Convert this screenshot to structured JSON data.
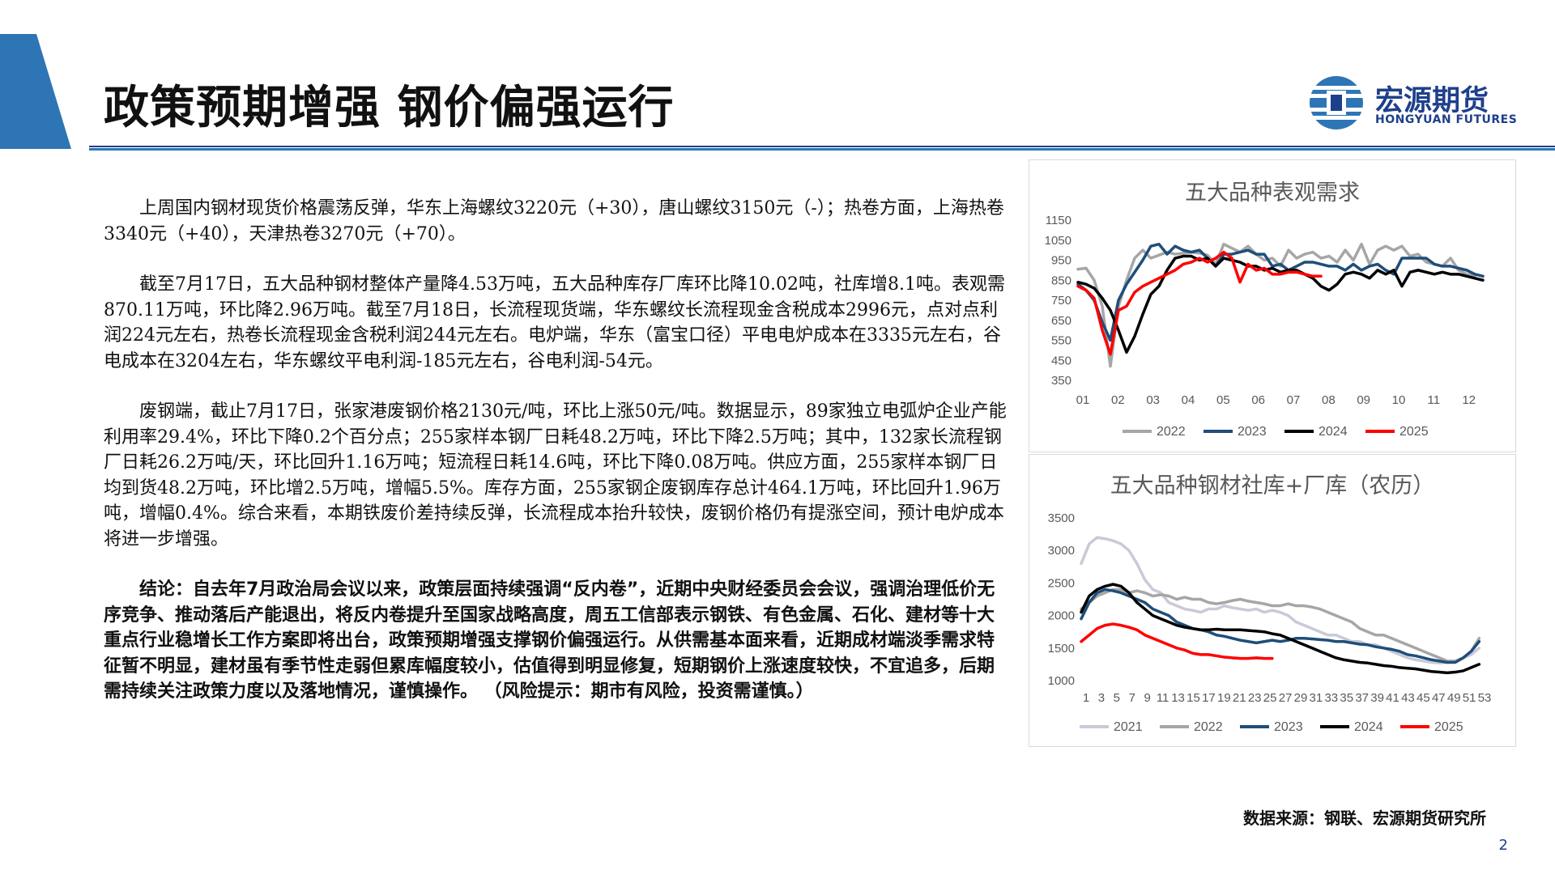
{
  "header": {
    "title": "政策预期增强 钢价偏强运行",
    "logo_cn": "宏源期货",
    "logo_en": "HONGYUAN FUTURES",
    "accent_color": "#2e75b6"
  },
  "body": {
    "p1": "上周国内钢材现货价格震荡反弹，华东上海螺纹3220元（+30），唐山螺纹3150元（-）；热卷方面，上海热卷3340元（+40），天津热卷3270元（+70）。",
    "p2": "截至7月17日，五大品种钢材整体产量降4.53万吨，五大品种库存厂库环比降10.02吨，社库增8.1吨。表观需870.11万吨，环比降2.96万吨。截至7月18日，长流程现货端，华东螺纹长流程现金含税成本2996元，点对点利润224元左右，热卷长流程现金含税利润244元左右。电炉端，华东（富宝口径）平电电炉成本在3335元左右，谷电成本在3204左右，华东螺纹平电利润-185元左右，谷电利润-54元。",
    "p3": "废钢端，截止7月17日，张家港废钢价格2130元/吨，环比上涨50元/吨。数据显示，89家独立电弧炉企业产能利用率29.4%，环比下降0.2个百分点；255家样本钢厂日耗48.2万吨，环比下降2.5万吨；其中，132家长流程钢厂日耗26.2万吨/天，环比回升1.16万吨；短流程日耗14.6吨，环比下降0.08万吨。供应方面，255家样本钢厂日均到货48.2万吨，环比增2.5万吨，增幅5.5%。库存方面，255家钢企废钢库存总计464.1万吨，环比回升1.96万吨，增幅0.4%。综合来看，本期铁废价差持续反弹，长流程成本抬升较快，废钢价格仍有提涨空间，预计电炉成本将进一步增强。",
    "p4": "结论：自去年7月政治局会议以来，政策层面持续强调“反内卷”，近期中央财经委员会会议，强调治理低价无序竞争、推动落后产能退出，将反内卷提升至国家战略高度，周五工信部表示钢铁、有色金属、石化、建材等十大重点行业稳增长工作方案即将出台，政策预期增强支撑钢价偏强运行。从供需基本面来看，近期成材端淡季需求特征暂不明显，建材虽有季节性走弱但累库幅度较小，估值得到明显修复，短期钢价上涨速度较快，不宜追多，后期需持续关注政策力度以及落地情况，谨慎操作。 （风险提示：期市有风险，投资需谨慎。）"
  },
  "footer": {
    "source": "数据来源：钢联、宏源期货研究所",
    "page": "2"
  },
  "chart_data": [
    {
      "type": "line",
      "title": "五大品种表观需求",
      "ylim": [
        350,
        1150
      ],
      "yticks": [
        1150,
        1050,
        950,
        850,
        750,
        650,
        550,
        450,
        350
      ],
      "x_tick_labels": [
        "01",
        "02",
        "03",
        "04",
        "05",
        "06",
        "07",
        "08",
        "09",
        "10",
        "11",
        "12"
      ],
      "x_range": [
        1,
        53
      ],
      "legend_position": "bottom",
      "series": [
        {
          "name": "2022",
          "color": "#a6a6a6",
          "values": [
            905,
            910,
            850,
            720,
            420,
            720,
            850,
            960,
            1000,
            960,
            975,
            990,
            980,
            985,
            990,
            985,
            975,
            930,
            1030,
            1010,
            990,
            1020,
            980,
            950,
            960,
            920,
            1000,
            960,
            980,
            990,
            960,
            970,
            940,
            1000,
            950,
            1030,
            930,
            1000,
            1020,
            1000,
            1020,
            970,
            980,
            940,
            930,
            920,
            960,
            900,
            880,
            870
          ]
        },
        {
          "name": "2023",
          "color": "#1f4e79",
          "values": [
            830,
            800,
            750,
            640,
            550,
            750,
            830,
            890,
            950,
            1020,
            1030,
            980,
            1020,
            1000,
            990,
            1000,
            960,
            920,
            980,
            980,
            990,
            1000,
            980,
            980,
            920,
            930,
            900,
            920,
            940,
            940,
            930,
            920,
            920,
            900,
            930,
            900,
            920,
            930,
            900,
            880,
            960,
            960,
            960,
            960,
            930,
            920,
            920,
            910,
            900,
            880,
            870
          ]
        },
        {
          "name": "2024",
          "color": "#000000",
          "values": [
            840,
            830,
            810,
            760,
            700,
            600,
            490,
            570,
            680,
            780,
            820,
            900,
            960,
            970,
            970,
            950,
            960,
            920,
            960,
            950,
            940,
            920,
            920,
            900,
            910,
            890,
            900,
            900,
            880,
            860,
            820,
            800,
            830,
            880,
            890,
            880,
            860,
            900,
            880,
            900,
            820,
            890,
            900,
            890,
            880,
            890,
            880,
            880,
            870,
            860,
            850
          ]
        },
        {
          "name": "2025",
          "color": "#ff0000",
          "values": [
            820,
            800,
            760,
            600,
            480,
            700,
            720,
            790,
            820,
            840,
            860,
            880,
            900,
            930,
            940,
            960,
            940,
            960,
            990,
            960,
            840,
            930,
            900,
            910,
            880,
            880,
            890,
            890,
            880,
            870,
            870
          ]
        }
      ]
    },
    {
      "type": "line",
      "title": "五大品种钢材社库+厂库（农历）",
      "ylim": [
        1000,
        3500
      ],
      "yticks": [
        3500,
        3000,
        2500,
        2000,
        1500,
        1000
      ],
      "x_tick_labels": [
        "1",
        "3",
        "5",
        "7",
        "9",
        "11",
        "13",
        "15",
        "17",
        "19",
        "21",
        "23",
        "25",
        "27",
        "29",
        "31",
        "33",
        "35",
        "37",
        "39",
        "41",
        "43",
        "45",
        "47",
        "49",
        "51",
        "53"
      ],
      "x_range": [
        1,
        53
      ],
      "legend_position": "bottom",
      "series": [
        {
          "name": "2021",
          "color": "#c9c9d9",
          "values": [
            2800,
            3100,
            3200,
            3180,
            3150,
            3100,
            3000,
            2800,
            2550,
            2400,
            2350,
            2200,
            2150,
            2100,
            2080,
            2050,
            2100,
            2100,
            2150,
            2120,
            2100,
            2080,
            2100,
            2050,
            2080,
            2050,
            2000,
            1900,
            1850,
            1800,
            1750,
            1700,
            1700,
            1650,
            1600,
            1600,
            1550,
            1550,
            1500,
            1450,
            1400,
            1350,
            1320,
            1300,
            1280,
            1270,
            1280,
            1300,
            1350,
            1400,
            1500
          ]
        },
        {
          "name": "2022",
          "color": "#a6a6a6",
          "values": [
            2100,
            2200,
            2300,
            2350,
            2400,
            2400,
            2350,
            2380,
            2350,
            2300,
            2320,
            2300,
            2250,
            2280,
            2250,
            2250,
            2200,
            2180,
            2200,
            2230,
            2250,
            2220,
            2200,
            2180,
            2150,
            2150,
            2180,
            2150,
            2150,
            2130,
            2100,
            2050,
            2000,
            1950,
            1900,
            1800,
            1750,
            1700,
            1700,
            1650,
            1600,
            1550,
            1500,
            1450,
            1400,
            1350,
            1300,
            1300,
            1350,
            1450,
            1650
          ]
        },
        {
          "name": "2023",
          "color": "#1f4e79",
          "values": [
            1950,
            2200,
            2350,
            2400,
            2380,
            2350,
            2300,
            2250,
            2200,
            2100,
            2050,
            2000,
            1900,
            1850,
            1800,
            1780,
            1750,
            1700,
            1680,
            1650,
            1620,
            1600,
            1580,
            1600,
            1620,
            1600,
            1620,
            1650,
            1650,
            1640,
            1630,
            1620,
            1600,
            1600,
            1580,
            1560,
            1550,
            1520,
            1500,
            1480,
            1450,
            1400,
            1380,
            1350,
            1320,
            1300,
            1280,
            1280,
            1350,
            1450,
            1600
          ]
        },
        {
          "name": "2024",
          "color": "#000000",
          "values": [
            2050,
            2300,
            2400,
            2450,
            2480,
            2450,
            2350,
            2200,
            2100,
            2000,
            1950,
            1900,
            1850,
            1820,
            1800,
            1780,
            1780,
            1790,
            1780,
            1780,
            1780,
            1770,
            1760,
            1750,
            1720,
            1700,
            1650,
            1600,
            1550,
            1500,
            1450,
            1400,
            1350,
            1320,
            1300,
            1280,
            1270,
            1250,
            1230,
            1220,
            1200,
            1190,
            1180,
            1160,
            1140,
            1130,
            1120,
            1130,
            1150,
            1200,
            1250
          ]
        },
        {
          "name": "2025",
          "color": "#ff0000",
          "values": [
            1600,
            1700,
            1800,
            1850,
            1870,
            1850,
            1820,
            1780,
            1700,
            1650,
            1600,
            1550,
            1500,
            1470,
            1420,
            1400,
            1400,
            1380,
            1360,
            1350,
            1340,
            1340,
            1350,
            1340,
            1340
          ]
        }
      ]
    }
  ]
}
